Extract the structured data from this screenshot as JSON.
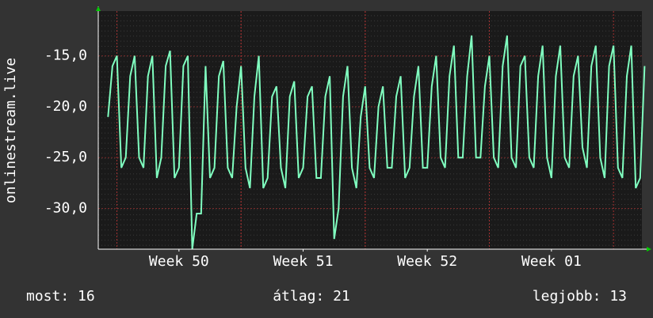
{
  "chart_data": {
    "type": "line",
    "y_label": "onlinestream.live",
    "x": [
      0,
      0.25,
      0.5,
      0.75,
      1,
      1.25,
      1.5,
      1.75,
      2,
      2.25,
      2.5,
      2.75,
      3,
      3.25,
      3.5,
      3.75,
      4,
      4.25,
      4.5,
      4.75,
      5,
      5.25,
      5.5,
      5.75,
      6,
      6.25,
      6.5,
      6.75,
      7,
      7.25,
      7.5,
      7.75,
      8,
      8.25,
      8.5,
      8.75,
      9,
      9.25,
      9.5,
      9.75,
      10,
      10.25,
      10.5,
      10.75,
      11,
      11.25,
      11.5,
      11.75,
      12,
      12.25,
      12.5,
      12.75,
      13,
      13.25,
      13.5,
      13.75,
      14,
      14.25,
      14.5,
      14.75,
      15,
      15.25,
      15.5,
      15.75,
      16,
      16.25,
      16.5,
      16.75,
      17,
      17.25,
      17.5,
      17.75,
      18,
      18.25,
      18.5,
      18.75,
      19,
      19.25,
      19.5,
      19.75,
      20,
      20.25,
      20.5,
      20.75,
      21,
      21.25,
      21.5,
      21.75,
      22,
      22.25,
      22.5,
      22.75,
      23,
      23.25,
      23.5,
      23.75,
      24,
      24.25,
      24.5,
      24.75,
      25,
      25.25,
      25.5,
      25.75,
      26,
      26.25,
      26.5,
      26.75,
      27,
      27.25,
      27.5,
      27.75,
      28,
      28.25,
      28.5,
      28.75,
      29,
      29.25,
      29.5,
      29.75,
      30,
      30.25
    ],
    "series": [
      {
        "name": "onlinestream.live",
        "color": "#80ffc0",
        "values": [
          -21,
          -16,
          -15,
          -26,
          -25,
          -17,
          -15,
          -25,
          -26,
          -17,
          -15,
          -27,
          -25,
          -16,
          -14.5,
          -27,
          -26,
          -16,
          -15,
          -34,
          -30.5,
          -30.5,
          -16,
          -27,
          -26,
          -17,
          -15.5,
          -26,
          -27,
          -20,
          -16,
          -26,
          -28,
          -19,
          -15,
          -28,
          -27,
          -19,
          -18,
          -26,
          -28,
          -19,
          -17.5,
          -27,
          -26,
          -19,
          -18,
          -27,
          -27,
          -19,
          -17,
          -33,
          -30,
          -19,
          -16,
          -26,
          -28,
          -21,
          -18,
          -26,
          -27,
          -20,
          -18,
          -26,
          -26,
          -19,
          -17,
          -27,
          -26,
          -19,
          -16,
          -26,
          -26,
          -18,
          -15,
          -25,
          -26,
          -17,
          -14,
          -25,
          -25,
          -17,
          -13,
          -25,
          -25,
          -18,
          -15,
          -25,
          -26,
          -16,
          -13,
          -25,
          -26,
          -16,
          -15,
          -25,
          -26,
          -17,
          -14,
          -25,
          -27,
          -17,
          -14,
          -25,
          -26,
          -17,
          -15,
          -24,
          -26,
          -16,
          -14,
          -25,
          -27,
          -16,
          -14,
          -26,
          -27,
          -17,
          -14,
          -28,
          -27,
          -16
        ]
      }
    ],
    "xlim": [
      -0.55,
      30.1
    ],
    "ylim": [
      -34,
      -10.6
    ],
    "xticks": [
      {
        "value": 4,
        "label": "Week 50"
      },
      {
        "value": 11,
        "label": "Week 51"
      },
      {
        "value": 18,
        "label": "Week 52"
      },
      {
        "value": 25,
        "label": "Week 01"
      }
    ],
    "yticks": [
      {
        "value": -15,
        "label": "-15,0"
      },
      {
        "value": -20,
        "label": "-20,0"
      },
      {
        "value": -25,
        "label": "-25,0"
      },
      {
        "value": -30,
        "label": "-30,0"
      }
    ],
    "grid": true,
    "legend_stats": [
      "most: 16",
      "átlag: 21",
      "legjobb: 13"
    ]
  }
}
